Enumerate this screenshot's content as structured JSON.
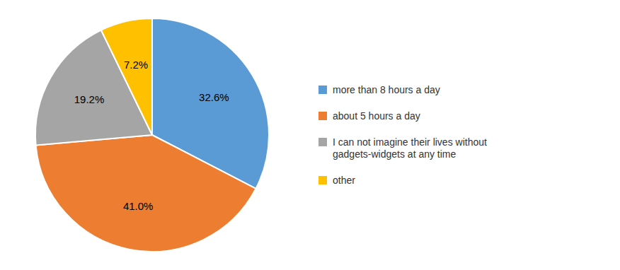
{
  "chart_data": {
    "type": "pie",
    "categories": [
      "more than 8 hours a day",
      "about 5 hours a day",
      "I can not imagine their lives without\ngadgets-widgets at any time",
      "other"
    ],
    "values": [
      32.6,
      41.0,
      19.2,
      7.2
    ],
    "value_labels": [
      "32.6%",
      "41.0%",
      "19.2%",
      "7.2%"
    ],
    "colors": [
      "#5B9BD5",
      "#ED7D31",
      "#A5A5A5",
      "#FFC000"
    ],
    "data_labels": true,
    "legend": "right"
  }
}
